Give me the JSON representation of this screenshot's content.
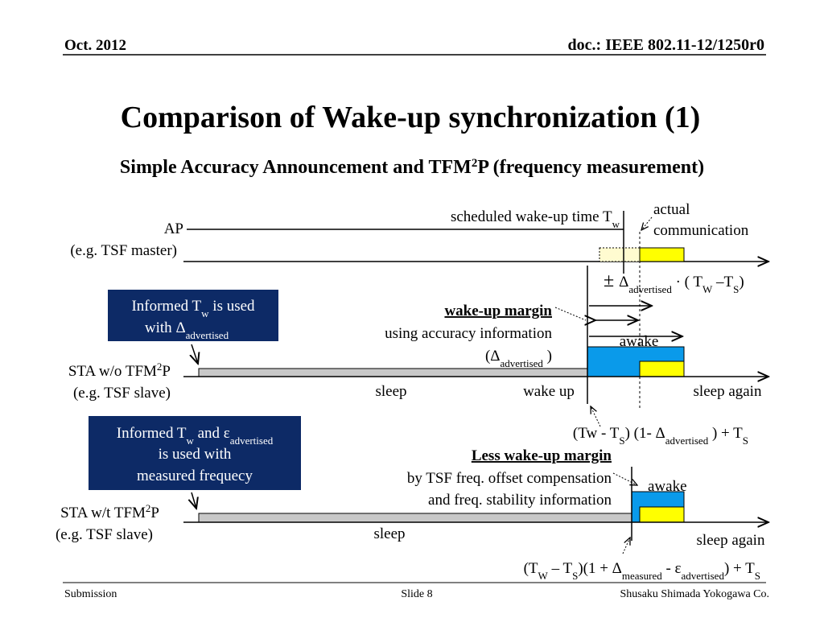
{
  "header": {
    "date": "Oct. 2012",
    "doc": "doc.: IEEE 802.11-12/1250r0"
  },
  "title": "Comparison of Wake-up synchronization (1)",
  "subtitle": [
    "Simple Accuracy Announcement and TFM",
    "2",
    "P (frequency measurement)"
  ],
  "ap": {
    "label": "AP",
    "note": "(e.g. TSF master)"
  },
  "scheduled": [
    "scheduled wake-up time T",
    "w"
  ],
  "actual": [
    "actual",
    "communication"
  ],
  "formula1": [
    "±",
    "Δ",
    "advertised",
    " · ( T",
    "W",
    " –T",
    "S",
    ")"
  ],
  "box1": {
    "line1": [
      "Informed T",
      "w",
      " is used"
    ],
    "line2": [
      "with ",
      "Δ",
      "advertised"
    ]
  },
  "margin": {
    "title": "wake-up margin",
    "line1": "using accuracy information",
    "line2": [
      "(Δ",
      "advertised",
      " )"
    ]
  },
  "sta1": {
    "label": [
      "STA w/o TFM",
      "2",
      "P"
    ],
    "note": "(e.g. TSF slave)",
    "awake": "awake",
    "sleep": "sleep",
    "wake": "wake up",
    "again": "sleep again"
  },
  "formula2": [
    "(Tw - T",
    "S",
    ") (1- Δ",
    "advertised",
    " ) + T",
    "S"
  ],
  "box2": {
    "line1": [
      "Informed T",
      "w",
      " and ε",
      "advertised"
    ],
    "line2": "is used with",
    "line3": "measured frequecy"
  },
  "less": {
    "title": "Less wake-up margin",
    "line1": "by TSF freq. offset compensation",
    "line2": "and freq. stability information"
  },
  "sta2": {
    "label": [
      "STA w/t TFM",
      "2",
      "P"
    ],
    "note": "(e.g. TSF slave)",
    "awake": "awake",
    "sleep": "sleep",
    "again": "sleep again"
  },
  "formula3": [
    "(T",
    "W",
    " – T",
    "S",
    ")(1 + Δ",
    "measured",
    " - ε",
    "advertised",
    ") + T",
    "S"
  ],
  "footer": {
    "left": "Submission",
    "center": "Slide 8",
    "right": "Shusaku Shimada Yokogawa Co."
  }
}
